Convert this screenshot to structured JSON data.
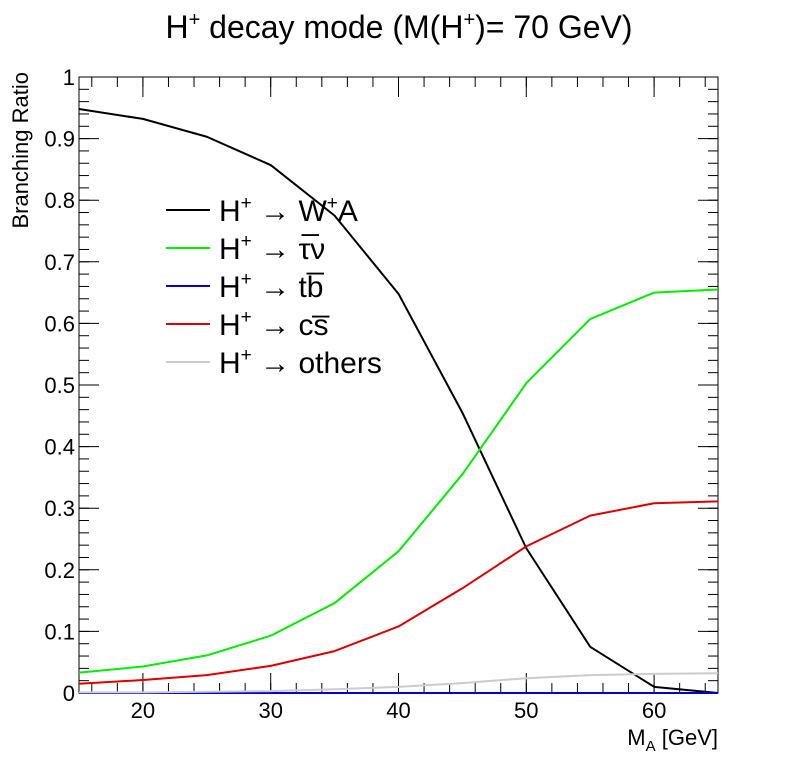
{
  "chart_data": {
    "type": "line",
    "title": {
      "main": "H",
      "sup1": "+",
      "mid": " decay mode (M(H",
      "sup2": "+",
      "end": ")= 70 GeV)"
    },
    "xlabel": {
      "main": "M",
      "sub": "A",
      "rest": " [GeV]"
    },
    "ylabel": "Branching Ratio",
    "xlim": [
      15,
      65
    ],
    "ylim": [
      0,
      1
    ],
    "x_ticks": [
      20,
      30,
      40,
      50,
      60
    ],
    "y_ticks": [
      0,
      0.1,
      0.2,
      0.3,
      0.4,
      0.5,
      0.6,
      0.7,
      0.8,
      0.9,
      1
    ],
    "y_tick_labels": [
      "0",
      "0.1",
      "0.2",
      "0.3",
      "0.4",
      "0.5",
      "0.6",
      "0.7",
      "0.8",
      "0.9",
      "1"
    ],
    "x_tick_labels": [
      "20",
      "30",
      "40",
      "50",
      "60"
    ],
    "grid": false,
    "legend_position": "upper-left",
    "x": [
      15,
      20,
      25,
      30,
      35,
      40,
      45,
      50,
      55,
      60,
      65
    ],
    "series": [
      {
        "name": "W+A",
        "legend": {
          "h": "H",
          "sup": "+",
          "arrow": " → ",
          "text": "W",
          "text_sup": "+",
          "text_end": "A"
        },
        "color": "#000000",
        "values": [
          0.948,
          0.932,
          0.903,
          0.857,
          0.775,
          0.648,
          0.455,
          0.235,
          0.075,
          0.01,
          0.0
        ]
      },
      {
        "name": "tau nu",
        "legend": {
          "h": "H",
          "sup": "+",
          "arrow": " → ",
          "text": "τ̅ν"
        },
        "color": "#00ee00",
        "values": [
          0.033,
          0.043,
          0.061,
          0.093,
          0.146,
          0.23,
          0.355,
          0.503,
          0.607,
          0.65,
          0.655
        ]
      },
      {
        "name": "t bbar",
        "legend": {
          "h": "H",
          "sup": "+",
          "arrow": " → ",
          "text": "tb̅"
        },
        "color": "#0000cc",
        "values": [
          0,
          0,
          0,
          0,
          0,
          0,
          0,
          0,
          0,
          0,
          0
        ]
      },
      {
        "name": "c sbar",
        "legend": {
          "h": "H",
          "sup": "+",
          "arrow": " → ",
          "text": "cs̅"
        },
        "color": "#dd0000",
        "values": [
          0.015,
          0.021,
          0.029,
          0.044,
          0.068,
          0.108,
          0.17,
          0.238,
          0.288,
          0.308,
          0.311
        ]
      },
      {
        "name": "others",
        "legend": {
          "h": "H",
          "sup": "+",
          "arrow": " → ",
          "text": "others"
        },
        "color": "#cccccc",
        "values": [
          0.001,
          0.001,
          0.002,
          0.003,
          0.006,
          0.01,
          0.016,
          0.024,
          0.029,
          0.031,
          0.032
        ]
      }
    ]
  }
}
